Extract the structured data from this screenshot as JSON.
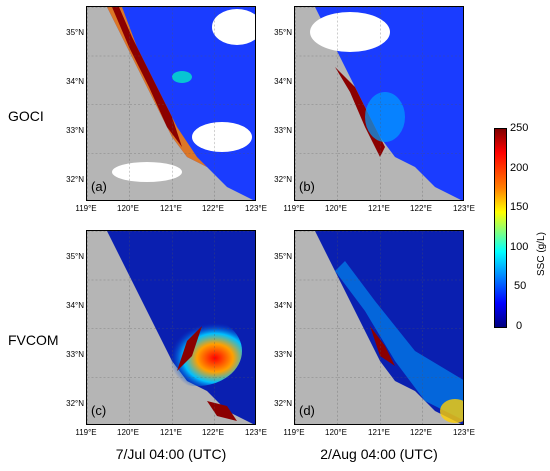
{
  "rows": [
    "GOCI",
    "FVCOM"
  ],
  "panels": [
    "(a)",
    "(b)",
    "(c)",
    "(d)"
  ],
  "lat_ticks": [
    "35°N",
    "34°N",
    "33°N",
    "32°N"
  ],
  "lon_ticks": [
    "119°E",
    "120°E",
    "121°E",
    "122°E",
    "123°E"
  ],
  "captions": [
    "7/Jul 04:00 (UTC)",
    "2/Aug 04:00 (UTC)"
  ],
  "colorbar": {
    "title": "SSC (g/L)",
    "ticks": [
      "250",
      "200",
      "150",
      "100",
      "50",
      "0"
    ],
    "colors": [
      "#7f0000",
      "#ff0000",
      "#ff8000",
      "#ffff00",
      "#80ff80",
      "#00ffff",
      "#0080ff",
      "#0000ff",
      "#00007f"
    ]
  }
}
